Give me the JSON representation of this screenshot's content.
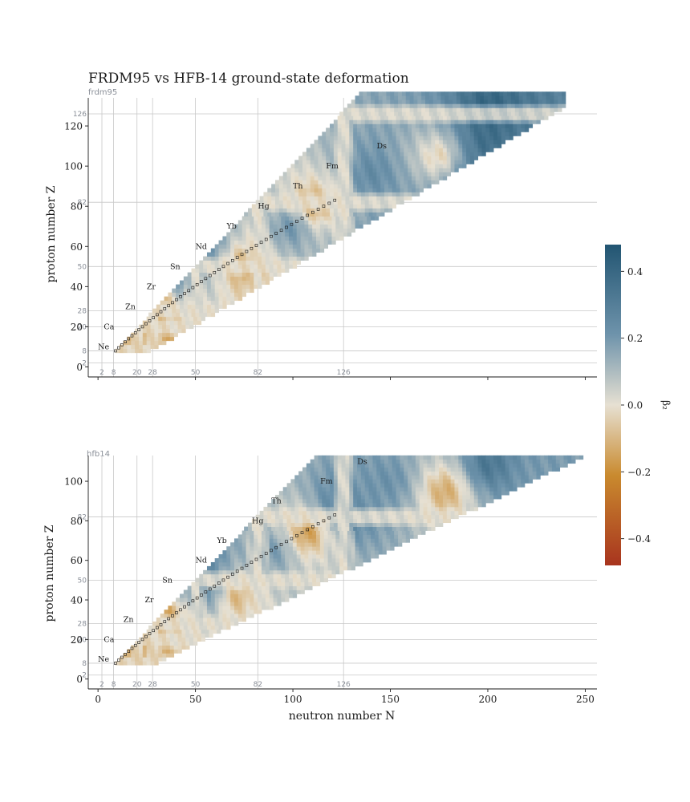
{
  "figure": {
    "title": "FRDM95 vs HFB-14 ground-state deformation"
  },
  "colors": {
    "grid": "#c8c8c8",
    "magic_label": "#8a8f98",
    "stable_box": "#1a1a1a",
    "cmap_neg_strong": "#a8341e",
    "cmap_neg": "#c98a2e",
    "cmap_zero": "#e6e0d2",
    "cmap_pos": "#6e93ab",
    "cmap_pos_strong": "#225572"
  },
  "chart_data": [
    {
      "type": "heatmap",
      "panel_label": "frdm95",
      "xlabel": "",
      "ylabel": "proton number Z",
      "xlim": [
        -5,
        256
      ],
      "ylim": [
        -5,
        134
      ],
      "yticks": [
        0,
        20,
        40,
        60,
        80,
        100,
        120
      ],
      "xticks": [
        0,
        50,
        100,
        150,
        200,
        250
      ],
      "show_x_tick_labels": false,
      "grid": true,
      "magic_numbers": [
        2,
        8,
        20,
        28,
        50,
        82,
        126
      ],
      "z_magic_labels": [
        2,
        8,
        20,
        28,
        50,
        82,
        126
      ],
      "n_magic_labels": [
        2,
        8,
        20,
        28,
        50,
        82,
        126
      ],
      "element_labels": [
        {
          "symbol": "Ne",
          "N": 0,
          "Z": 10
        },
        {
          "symbol": "Ca",
          "N": 3,
          "Z": 20
        },
        {
          "symbol": "Zn",
          "N": 14,
          "Z": 30
        },
        {
          "symbol": "Zr",
          "N": 25,
          "Z": 40
        },
        {
          "symbol": "Sn",
          "N": 37,
          "Z": 50
        },
        {
          "symbol": "Nd",
          "N": 50,
          "Z": 60
        },
        {
          "symbol": "Yb",
          "N": 66,
          "Z": 70
        },
        {
          "symbol": "Hg",
          "N": 82,
          "Z": 80
        },
        {
          "symbol": "Th",
          "N": 100,
          "Z": 90
        },
        {
          "symbol": "Fm",
          "N": 117,
          "Z": 100
        },
        {
          "symbol": "Ds",
          "N": 143,
          "Z": 110
        }
      ],
      "coverage": {
        "z_min": 8,
        "z_max": 136,
        "n_min_intercept": 2,
        "n_min_slope": 1.0,
        "n_max_intercept": 13,
        "n_max_slope": 1.75,
        "n_cap": 240
      },
      "regions": [
        {
          "N": 22,
          "Z": 22,
          "beta2": -0.22
        },
        {
          "N": 18,
          "Z": 14,
          "beta2": -0.25
        },
        {
          "N": 32,
          "Z": 36,
          "beta2": -0.28
        },
        {
          "N": 40,
          "Z": 42,
          "beta2": 0.38
        },
        {
          "N": 55,
          "Z": 62,
          "beta2": 0.32
        },
        {
          "N": 75,
          "Z": 50,
          "beta2": -0.22
        },
        {
          "N": 100,
          "Z": 70,
          "beta2": 0.3
        },
        {
          "N": 110,
          "Z": 80,
          "beta2": -0.25
        },
        {
          "N": 140,
          "Z": 96,
          "beta2": 0.28
        },
        {
          "N": 175,
          "Z": 105,
          "beta2": -0.12
        },
        {
          "N": 200,
          "Z": 112,
          "beta2": 0.42
        },
        {
          "N": 210,
          "Z": 100,
          "beta2": 0.22
        },
        {
          "N": 195,
          "Z": 88,
          "beta2": 0.45
        },
        {
          "N": 200,
          "Z": 128,
          "beta2": 0.45
        },
        {
          "N": 140,
          "Z": 60,
          "beta2": 0.24
        }
      ],
      "colorbar": {
        "label": "β₂",
        "min": -0.48,
        "max": 0.48,
        "ticks": [
          -0.4,
          -0.2,
          0.0,
          0.2,
          0.4
        ],
        "tick_labels": [
          "−0.4",
          "−0.2",
          "0.0",
          "0.2",
          "0.4"
        ]
      }
    },
    {
      "type": "heatmap",
      "panel_label": "hfb14",
      "xlabel": "neutron number N",
      "ylabel": "proton number Z",
      "xlim": [
        -5,
        256
      ],
      "ylim": [
        -5,
        113
      ],
      "yticks": [
        0,
        20,
        40,
        60,
        80,
        100
      ],
      "xticks": [
        0,
        50,
        100,
        150,
        200,
        250
      ],
      "x_tick_labels": [
        "0",
        "50",
        "100",
        "150",
        "200",
        "250"
      ],
      "grid": true,
      "magic_numbers": [
        2,
        8,
        20,
        28,
        50,
        82,
        126
      ],
      "z_magic_labels": [
        2,
        8,
        20,
        28,
        50,
        82
      ],
      "n_magic_labels": [
        2,
        8,
        20,
        28,
        50,
        82,
        126
      ],
      "element_labels": [
        {
          "symbol": "Ne",
          "N": 0,
          "Z": 10
        },
        {
          "symbol": "Ca",
          "N": 3,
          "Z": 20
        },
        {
          "symbol": "Zn",
          "N": 13,
          "Z": 30
        },
        {
          "symbol": "Zr",
          "N": 24,
          "Z": 40
        },
        {
          "symbol": "Sn",
          "N": 33,
          "Z": 50
        },
        {
          "symbol": "Nd",
          "N": 50,
          "Z": 60
        },
        {
          "symbol": "Yb",
          "N": 61,
          "Z": 70
        },
        {
          "symbol": "Hg",
          "N": 79,
          "Z": 80
        },
        {
          "symbol": "Th",
          "N": 89,
          "Z": 90
        },
        {
          "symbol": "Fm",
          "N": 114,
          "Z": 100
        },
        {
          "symbol": "Ds",
          "N": 133,
          "Z": 110
        }
      ],
      "coverage": {
        "z_min": 8,
        "z_max": 112,
        "n_min_intercept": 2,
        "n_min_slope": 1.0,
        "n_max_intercept": 13,
        "n_max_slope": 2.1,
        "n_cap": 252
      },
      "regions": [
        {
          "N": 20,
          "Z": 14,
          "beta2": -0.3
        },
        {
          "N": 38,
          "Z": 36,
          "beta2": -0.32
        },
        {
          "N": 45,
          "Z": 42,
          "beta2": 0.35
        },
        {
          "N": 58,
          "Z": 45,
          "beta2": 0.3
        },
        {
          "N": 55,
          "Z": 60,
          "beta2": 0.35
        },
        {
          "N": 70,
          "Z": 42,
          "beta2": -0.25
        },
        {
          "N": 90,
          "Z": 64,
          "beta2": 0.25
        },
        {
          "N": 108,
          "Z": 74,
          "beta2": -0.3
        },
        {
          "N": 120,
          "Z": 90,
          "beta2": 0.3
        },
        {
          "N": 150,
          "Z": 100,
          "beta2": 0.25
        },
        {
          "N": 178,
          "Z": 95,
          "beta2": -0.2
        },
        {
          "N": 200,
          "Z": 108,
          "beta2": 0.38
        },
        {
          "N": 225,
          "Z": 105,
          "beta2": 0.2
        },
        {
          "N": 130,
          "Z": 80,
          "beta2": 0.3
        }
      ]
    }
  ]
}
